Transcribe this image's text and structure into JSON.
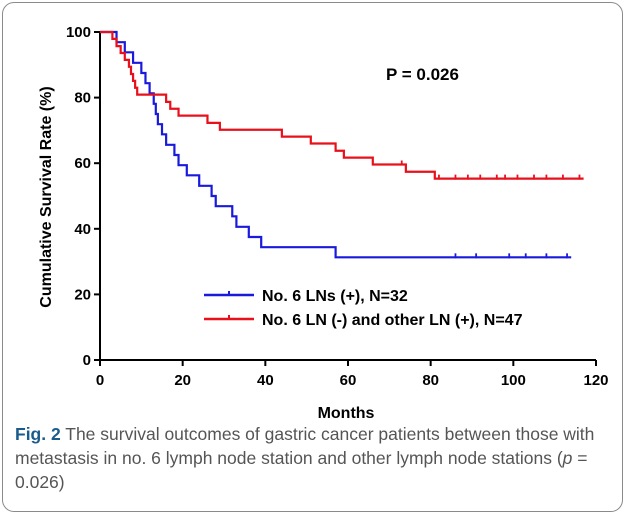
{
  "chart_data": {
    "type": "line",
    "subtype": "kaplan-meier",
    "title": "",
    "xlabel": "Months",
    "ylabel": "Cumulative Survival Rate (%)",
    "xlim": [
      0,
      120
    ],
    "ylim": [
      0,
      100
    ],
    "xticks": [
      "0",
      "20",
      "40",
      "60",
      "80",
      "100",
      "120"
    ],
    "yticks": [
      "0",
      "20",
      "40",
      "60",
      "80",
      "100"
    ],
    "grid": false,
    "legend_position": "lower-left",
    "annotation": "P = 0.026",
    "series": [
      {
        "name": "No. 6 LNs (+), N=32",
        "color": "#1a1adc",
        "steps": [
          [
            0,
            100
          ],
          [
            4,
            96.9
          ],
          [
            6,
            93.8
          ],
          [
            8,
            90.6
          ],
          [
            10,
            87.5
          ],
          [
            11,
            84.4
          ],
          [
            12,
            81.3
          ],
          [
            13,
            78.1
          ],
          [
            13.5,
            75
          ],
          [
            14,
            71.9
          ],
          [
            15,
            68.8
          ],
          [
            16,
            65.6
          ],
          [
            18,
            62.5
          ],
          [
            19,
            59.4
          ],
          [
            21,
            56.3
          ],
          [
            24,
            53.1
          ],
          [
            27,
            50
          ],
          [
            28,
            46.9
          ],
          [
            32,
            43.8
          ],
          [
            33,
            40.6
          ],
          [
            36,
            37.5
          ],
          [
            39,
            34.4
          ],
          [
            57,
            31.3
          ],
          [
            114,
            31.3
          ]
        ],
        "censored": [
          [
            86,
            31.3
          ],
          [
            91,
            31.3
          ],
          [
            99,
            31.3
          ],
          [
            103,
            31.3
          ],
          [
            108,
            31.3
          ],
          [
            113,
            31.3
          ]
        ]
      },
      {
        "name": "No. 6 LN (-) and other LN (+), N=47",
        "color": "#e8101a",
        "steps": [
          [
            0,
            100
          ],
          [
            3,
            97.9
          ],
          [
            4,
            95.7
          ],
          [
            5,
            93.6
          ],
          [
            6,
            91.5
          ],
          [
            7,
            89.4
          ],
          [
            7.5,
            87.2
          ],
          [
            8,
            85.1
          ],
          [
            8.5,
            83
          ],
          [
            9,
            80.9
          ],
          [
            16,
            78.7
          ],
          [
            17,
            76.6
          ],
          [
            19,
            74.5
          ],
          [
            26,
            72.3
          ],
          [
            29,
            70.2
          ],
          [
            44,
            68.1
          ],
          [
            51,
            66
          ],
          [
            57,
            63.8
          ],
          [
            59,
            61.7
          ],
          [
            66,
            59.6
          ],
          [
            74,
            57.4
          ],
          [
            81,
            55.3
          ],
          [
            117,
            55.3
          ]
        ],
        "censored": [
          [
            73,
            59.6
          ],
          [
            82,
            55.3
          ],
          [
            86,
            55.3
          ],
          [
            89,
            55.3
          ],
          [
            92,
            55.3
          ],
          [
            96,
            55.3
          ],
          [
            98,
            55.3
          ],
          [
            101,
            55.3
          ],
          [
            105,
            55.3
          ],
          [
            108,
            55.3
          ],
          [
            112,
            55.3
          ],
          [
            116,
            55.3
          ]
        ]
      }
    ]
  },
  "caption": {
    "fig_label": "Fig. 2",
    "text_before_p": "The survival outcomes of gastric cancer patients between those with metastasis in no. 6 lymph node station and other lymph node stations (",
    "p_symbol": "p",
    "text_after_p": " = 0.026)"
  }
}
